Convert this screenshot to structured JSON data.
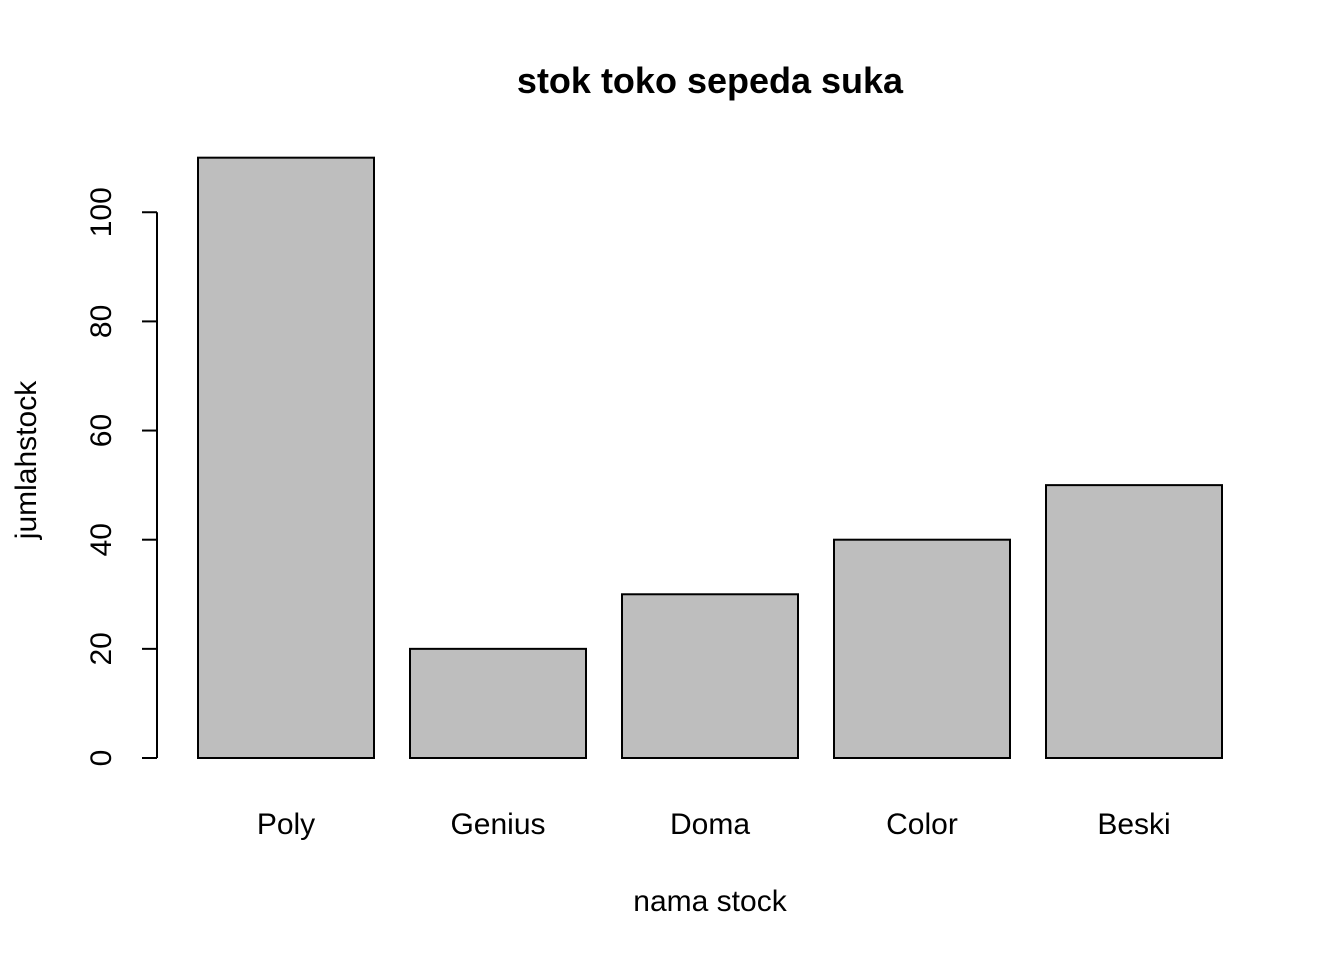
{
  "chart_data": {
    "type": "bar",
    "title": "stok toko sepeda suka",
    "xlabel": "nama stock",
    "ylabel": "jumlahstock",
    "categories": [
      "Poly",
      "Genius",
      "Doma",
      "Color",
      "Beski"
    ],
    "values": [
      110,
      20,
      30,
      40,
      50
    ],
    "yticks": [
      "0",
      "20",
      "40",
      "60",
      "80",
      "100"
    ],
    "ylim": [
      0,
      110
    ],
    "grid": false,
    "legend": "none",
    "bar_color": "#bebebe",
    "edge_color": "#000000"
  }
}
